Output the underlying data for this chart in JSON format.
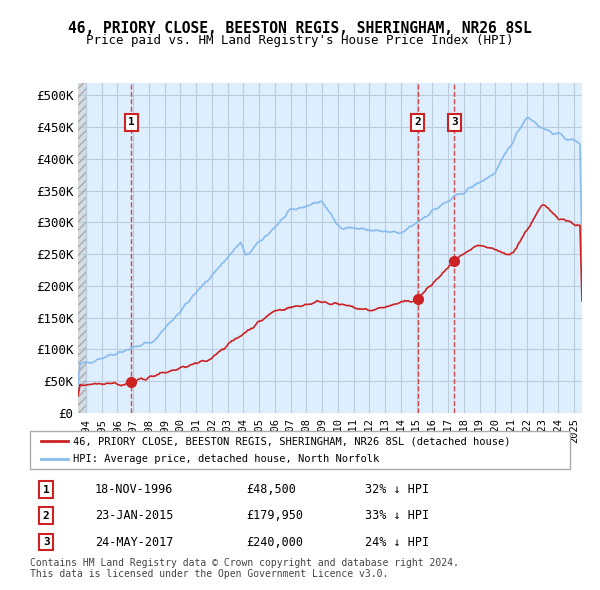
{
  "title1": "46, PRIORY CLOSE, BEESTON REGIS, SHERINGHAM, NR26 8SL",
  "title2": "Price paid vs. HM Land Registry's House Price Index (HPI)",
  "ylabel": "",
  "background_main": "#ddeeff",
  "background_hatch": "#e8e8e8",
  "grid_color": "#bbccdd",
  "hpi_color": "#88bbee",
  "price_color": "#cc2222",
  "sale_marker_color": "#cc2222",
  "vline_color": "#cc2222",
  "ylim": [
    0,
    520000
  ],
  "yticks": [
    0,
    50000,
    100000,
    150000,
    200000,
    250000,
    300000,
    350000,
    400000,
    450000,
    500000
  ],
  "ytick_labels": [
    "£0",
    "£50K",
    "£100K",
    "£150K",
    "£200K",
    "£250K",
    "£300K",
    "£350K",
    "£400K",
    "£450K",
    "£500K"
  ],
  "xlim_start": 1993.5,
  "xlim_end": 2025.5,
  "sale_dates": [
    1996.88,
    2015.07,
    2017.4
  ],
  "sale_prices": [
    48500,
    179950,
    240000
  ],
  "sale_labels": [
    "1",
    "2",
    "3"
  ],
  "legend_line1": "46, PRIORY CLOSE, BEESTON REGIS, SHERINGHAM, NR26 8SL (detached house)",
  "legend_line2": "HPI: Average price, detached house, North Norfolk",
  "table_rows": [
    [
      "1",
      "18-NOV-1996",
      "£48,500",
      "32% ↓ HPI"
    ],
    [
      "2",
      "23-JAN-2015",
      "£179,950",
      "33% ↓ HPI"
    ],
    [
      "3",
      "24-MAY-2017",
      "£240,000",
      "24% ↓ HPI"
    ]
  ],
  "footer": "Contains HM Land Registry data © Crown copyright and database right 2024.\nThis data is licensed under the Open Government Licence v3.0.",
  "xtick_years": [
    1994,
    1995,
    1996,
    1997,
    1998,
    1999,
    2000,
    2001,
    2002,
    2003,
    2004,
    2005,
    2006,
    2007,
    2008,
    2009,
    2010,
    2011,
    2012,
    2013,
    2014,
    2015,
    2016,
    2017,
    2018,
    2019,
    2020,
    2021,
    2022,
    2023,
    2024,
    2025
  ]
}
